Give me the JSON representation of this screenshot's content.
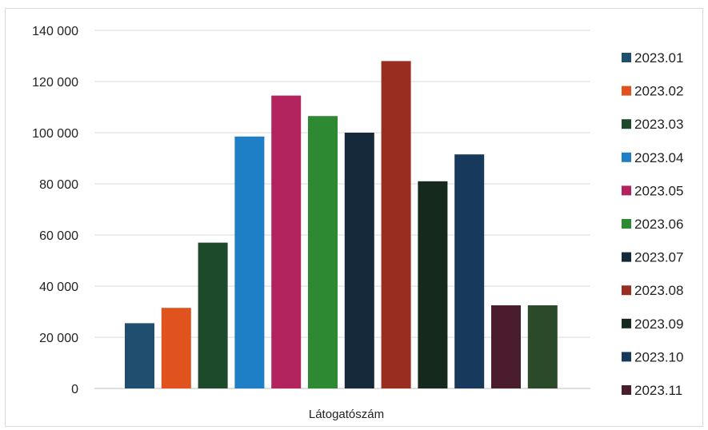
{
  "chart_data": {
    "type": "bar",
    "categories": [
      "Látogatószám"
    ],
    "xlabel": "",
    "ylabel": "",
    "title": "",
    "ylim": [
      0,
      140000
    ],
    "ytick_step": 20000,
    "ytick_labels": [
      "0",
      "20 000",
      "40 000",
      "60 000",
      "80 000",
      "100 000",
      "120 000",
      "140 000"
    ],
    "grid": true,
    "legend_position": "right",
    "series": [
      {
        "name": "2023.01",
        "values": [
          25500
        ],
        "color": "#1f4e6e"
      },
      {
        "name": "2023.02",
        "values": [
          31500
        ],
        "color": "#e0531f"
      },
      {
        "name": "2023.03",
        "values": [
          57000
        ],
        "color": "#1c4a2a"
      },
      {
        "name": "2023.04",
        "values": [
          98500
        ],
        "color": "#1e7fc6"
      },
      {
        "name": "2023.05",
        "values": [
          114500
        ],
        "color": "#b3245e"
      },
      {
        "name": "2023.06",
        "values": [
          106500
        ],
        "color": "#2e8a32"
      },
      {
        "name": "2023.07",
        "values": [
          100000
        ],
        "color": "#16293a"
      },
      {
        "name": "2023.08",
        "values": [
          128000
        ],
        "color": "#992d1f"
      },
      {
        "name": "2023.09",
        "values": [
          81000
        ],
        "color": "#152a1c"
      },
      {
        "name": "2023.10",
        "values": [
          91500
        ],
        "color": "#173a5c"
      },
      {
        "name": "2023.11",
        "values": [
          32500
        ],
        "color": "#4a1c2e"
      },
      {
        "values": [
          32500
        ],
        "color": "#2a4a2a"
      }
    ]
  }
}
